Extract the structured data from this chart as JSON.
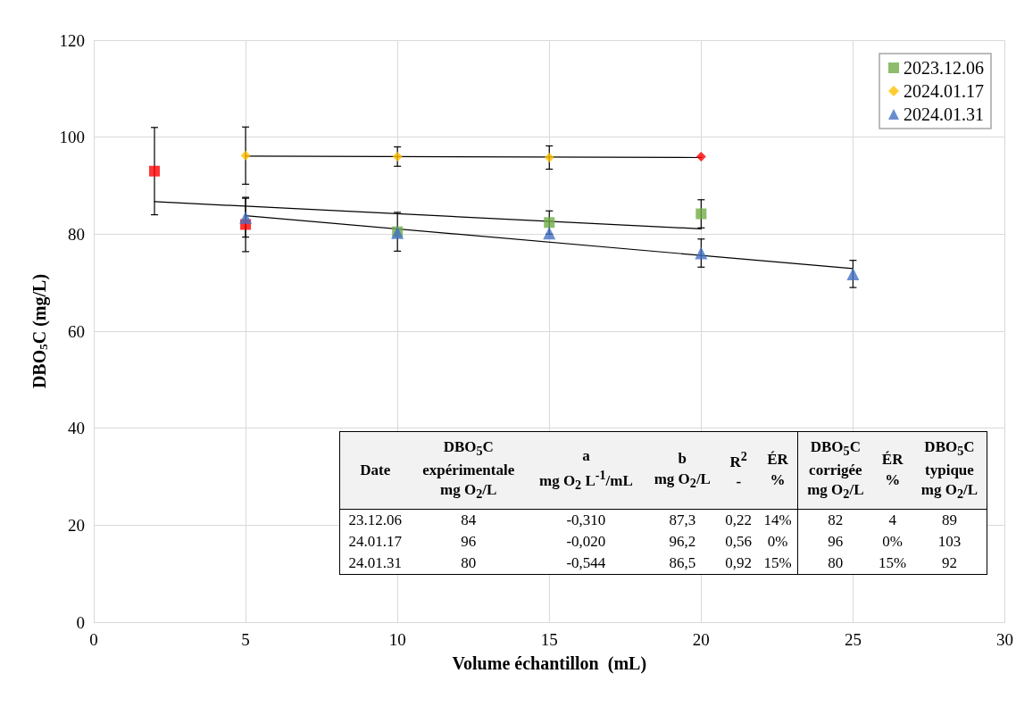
{
  "chart_data": [
    {
      "type": "scatter",
      "xlabel": "Volume échantillon  (mL)",
      "ylabel": "DBO$_{5}$C (mg/L)",
      "xlim": [
        0,
        30
      ],
      "xticks": [
        0,
        5,
        10,
        15,
        20,
        25,
        30
      ],
      "ylim": [
        0,
        120
      ],
      "yticks": [
        0,
        20,
        40,
        60,
        80,
        100,
        120
      ],
      "grid": true,
      "legend": "top right",
      "series": [
        {
          "name": "2023.12.06",
          "color": "#70ad47",
          "marker": "square",
          "x": [
            2,
            5,
            10,
            15,
            20
          ],
          "values": [
            93,
            82,
            80.5,
            82.4,
            84.2
          ],
          "colors": [
            "#ff0000",
            "#ff0000",
            "#70ad47",
            "#70ad47",
            "#70ad47"
          ],
          "errors": [
            9,
            5.6,
            4,
            2.4,
            2.9
          ]
        },
        {
          "name": "2024.01.17",
          "color": "#ffc000",
          "marker": "diamond",
          "x": [
            5,
            10,
            15,
            20
          ],
          "values": [
            96.2,
            96,
            95.8,
            96
          ],
          "colors": [
            "#ffc000",
            "#ffc000",
            "#ffc000",
            "#ff0000"
          ],
          "errors": [
            5.9,
            2,
            2.4,
            null
          ]
        },
        {
          "name": "2024.01.31",
          "color": "#4472c4",
          "marker": "triangle",
          "x": [
            5,
            10,
            15,
            20,
            25
          ],
          "values": [
            83.4,
            80.3,
            80.2,
            76.1,
            71.8
          ],
          "errors": [
            4,
            null,
            null,
            2.9,
            2.8
          ]
        },
        {
          "type": "line",
          "color": "#000000",
          "marker": "none",
          "line_style": "solid",
          "x": [
            2,
            20
          ],
          "values": [
            86.7,
            81.1
          ]
        },
        {
          "type": "line",
          "color": "#000000",
          "marker": "none",
          "line_style": "solid",
          "x": [
            5,
            20
          ],
          "values": [
            96.1,
            95.8
          ]
        },
        {
          "type": "line",
          "color": "#000000",
          "marker": "none",
          "line_style": "solid",
          "x": [
            5,
            25
          ],
          "values": [
            83.8,
            72.9
          ]
        }
      ]
    },
    {
      "type": "other",
      "categories": [
        "Date",
        "DBO$_{5}$C\nexpérimentale\nmg O$_{2}$/L",
        "a\nmg O$_{2}$ L$^{-1}$/mL",
        "b\nmg O$_{2}$/L",
        "R$^{2}$\n-",
        "ÉR\n%",
        "DBO$_{5}$C\ncorrigée\nmg O$_{2}$/L",
        "ÉR\n%",
        "DBO$_{5}$C\ntypique\nmg O$_{2}$/L"
      ],
      "cell_labels": [
        [
          "23.12.06",
          "84",
          "-0,310",
          "87,3",
          "0,22",
          "14%",
          "82",
          "4",
          "89"
        ],
        [
          "24.01.17",
          "96",
          "-0,020",
          "96,2",
          "0,56",
          "0%",
          "96",
          "0%",
          "103"
        ],
        [
          "24.01.31",
          "80",
          "-0,544",
          "86,5",
          "0,92",
          "15%",
          "80",
          "15%",
          "92"
        ]
      ]
    }
  ]
}
